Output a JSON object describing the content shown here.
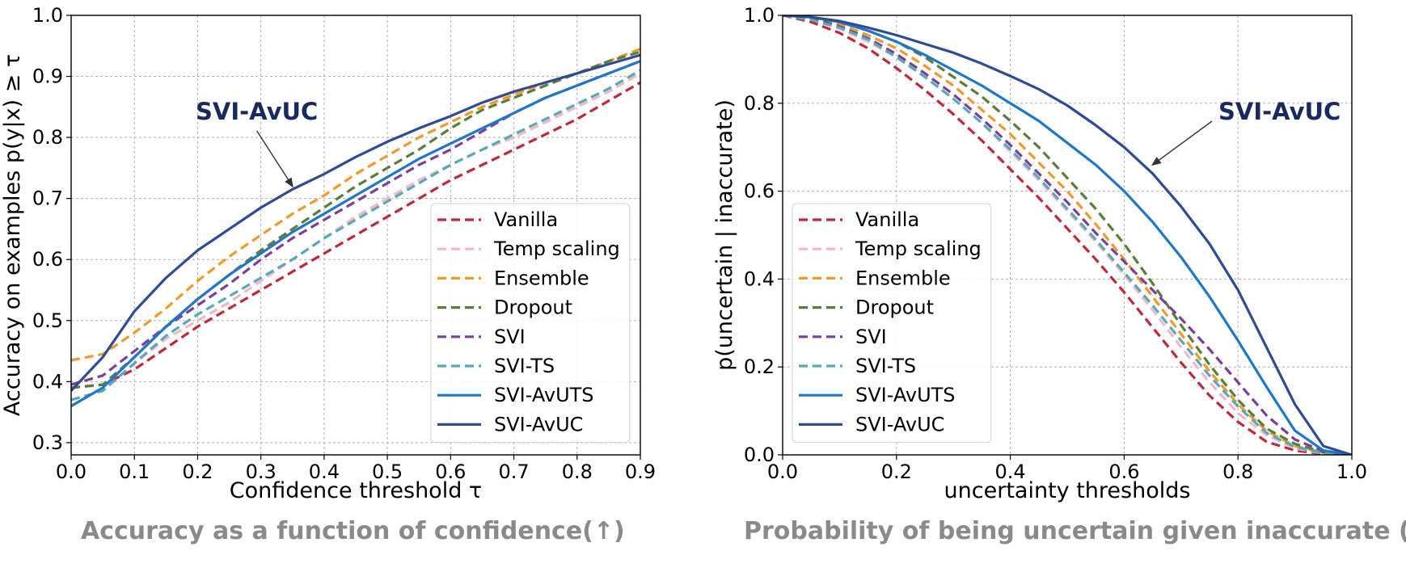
{
  "captions": {
    "left": "Accuracy as a function of confidence(↑)",
    "right": "Probability of being uncertain given inaccurate (↑)"
  },
  "legend_colors": {
    "Vanilla": "#c0283a",
    "Temp scaling": "#f6b6c6",
    "Ensemble": "#f09a2c",
    "Dropout": "#5a7d3c",
    "SVI": "#7b3f9a",
    "SVI-TS": "#55aab8",
    "SVI-AvUTS": "#1f77c8",
    "SVI-AvUC": "#2e4b96"
  },
  "chart_data": [
    {
      "type": "line",
      "title": "",
      "xlabel": "Confidence threshold τ",
      "ylabel": "Accuracy on examples  p(y|x)  ≥ τ",
      "xlim": [
        0.0,
        0.9
      ],
      "ylim": [
        0.28,
        1.0
      ],
      "xticks": [
        "0.0",
        "0.1",
        "0.2",
        "0.3",
        "0.4",
        "0.5",
        "0.6",
        "0.7",
        "0.8",
        "0.9"
      ],
      "yticks": [
        "0.3",
        "0.4",
        "0.5",
        "0.6",
        "0.7",
        "0.8",
        "0.9",
        "1.0"
      ],
      "grid": true,
      "legend": "bottom-right",
      "annotation": {
        "text": "SVI-AvUC",
        "point": [
          0.35,
          0.72
        ]
      },
      "x": [
        0.0,
        0.05,
        0.1,
        0.15,
        0.2,
        0.25,
        0.3,
        0.35,
        0.4,
        0.45,
        0.5,
        0.55,
        0.6,
        0.65,
        0.7,
        0.75,
        0.8,
        0.85,
        0.9
      ],
      "series": [
        {
          "name": "Vanilla",
          "dashed": true,
          "values": [
            0.39,
            0.395,
            0.42,
            0.455,
            0.49,
            0.52,
            0.55,
            0.58,
            0.61,
            0.64,
            0.67,
            0.7,
            0.73,
            0.755,
            0.78,
            0.805,
            0.83,
            0.86,
            0.89
          ]
        },
        {
          "name": "Temp scaling",
          "dashed": true,
          "values": [
            0.37,
            0.385,
            0.43,
            0.47,
            0.5,
            0.53,
            0.565,
            0.6,
            0.635,
            0.67,
            0.7,
            0.73,
            0.755,
            0.78,
            0.8,
            0.825,
            0.85,
            0.875,
            0.905
          ]
        },
        {
          "name": "Ensemble",
          "dashed": true,
          "values": [
            0.435,
            0.445,
            0.48,
            0.52,
            0.565,
            0.605,
            0.64,
            0.675,
            0.705,
            0.74,
            0.77,
            0.8,
            0.825,
            0.85,
            0.87,
            0.89,
            0.905,
            0.925,
            0.945
          ]
        },
        {
          "name": "Dropout",
          "dashed": true,
          "values": [
            0.39,
            0.395,
            0.44,
            0.49,
            0.535,
            0.575,
            0.615,
            0.65,
            0.685,
            0.72,
            0.75,
            0.78,
            0.815,
            0.845,
            0.865,
            0.885,
            0.905,
            0.925,
            0.94
          ]
        },
        {
          "name": "SVI",
          "dashed": true,
          "values": [
            0.395,
            0.41,
            0.45,
            0.49,
            0.525,
            0.56,
            0.6,
            0.635,
            0.665,
            0.695,
            0.725,
            0.755,
            0.78,
            0.81,
            0.84,
            0.865,
            0.885,
            0.905,
            0.925
          ]
        },
        {
          "name": "SVI-TS",
          "dashed": true,
          "values": [
            0.37,
            0.385,
            0.43,
            0.475,
            0.51,
            0.54,
            0.57,
            0.6,
            0.635,
            0.665,
            0.695,
            0.725,
            0.755,
            0.78,
            0.805,
            0.83,
            0.855,
            0.88,
            0.91
          ]
        },
        {
          "name": "SVI-AvUTS",
          "dashed": false,
          "values": [
            0.36,
            0.39,
            0.44,
            0.49,
            0.535,
            0.575,
            0.61,
            0.645,
            0.675,
            0.705,
            0.735,
            0.765,
            0.79,
            0.815,
            0.84,
            0.865,
            0.885,
            0.905,
            0.925
          ]
        },
        {
          "name": "SVI-AvUC",
          "dashed": false,
          "values": [
            0.385,
            0.44,
            0.515,
            0.57,
            0.615,
            0.65,
            0.685,
            0.715,
            0.74,
            0.768,
            0.793,
            0.815,
            0.835,
            0.857,
            0.875,
            0.89,
            0.905,
            0.92,
            0.935
          ]
        }
      ]
    },
    {
      "type": "line",
      "title": "",
      "xlabel": "uncertainty thresholds",
      "ylabel": "p(uncertain | inaccurate)",
      "xlim": [
        0.0,
        1.0
      ],
      "ylim": [
        0.0,
        1.0
      ],
      "xticks": [
        "0.0",
        "0.2",
        "0.4",
        "0.6",
        "0.8",
        "1.0"
      ],
      "yticks": [
        "0.0",
        "0.2",
        "0.4",
        "0.6",
        "0.8",
        "1.0"
      ],
      "grid": true,
      "legend": "bottom-left",
      "annotation": {
        "text": "SVI-AvUC",
        "point": [
          0.65,
          0.66
        ]
      },
      "x": [
        0.0,
        0.05,
        0.1,
        0.15,
        0.2,
        0.25,
        0.3,
        0.35,
        0.4,
        0.45,
        0.5,
        0.55,
        0.6,
        0.65,
        0.7,
        0.75,
        0.8,
        0.85,
        0.9,
        0.95,
        1.0
      ],
      "series": [
        {
          "name": "Vanilla",
          "dashed": true,
          "values": [
            1.0,
            0.985,
            0.96,
            0.925,
            0.88,
            0.83,
            0.775,
            0.715,
            0.65,
            0.585,
            0.515,
            0.445,
            0.37,
            0.29,
            0.21,
            0.135,
            0.075,
            0.03,
            0.01,
            0.002,
            0.0
          ]
        },
        {
          "name": "Temp scaling",
          "dashed": true,
          "values": [
            1.0,
            0.99,
            0.97,
            0.94,
            0.905,
            0.86,
            0.81,
            0.755,
            0.69,
            0.625,
            0.555,
            0.485,
            0.41,
            0.33,
            0.245,
            0.165,
            0.095,
            0.045,
            0.015,
            0.003,
            0.0
          ]
        },
        {
          "name": "Ensemble",
          "dashed": true,
          "values": [
            1.0,
            0.995,
            0.98,
            0.955,
            0.925,
            0.885,
            0.84,
            0.785,
            0.73,
            0.665,
            0.6,
            0.525,
            0.445,
            0.36,
            0.275,
            0.19,
            0.115,
            0.055,
            0.02,
            0.005,
            0.0
          ]
        },
        {
          "name": "Dropout",
          "dashed": true,
          "values": [
            1.0,
            0.995,
            0.985,
            0.965,
            0.94,
            0.905,
            0.86,
            0.815,
            0.76,
            0.7,
            0.63,
            0.56,
            0.48,
            0.39,
            0.295,
            0.205,
            0.125,
            0.06,
            0.025,
            0.006,
            0.0
          ]
        },
        {
          "name": "SVI",
          "dashed": true,
          "values": [
            1.0,
            0.993,
            0.975,
            0.948,
            0.912,
            0.868,
            0.82,
            0.765,
            0.705,
            0.64,
            0.575,
            0.505,
            0.44,
            0.375,
            0.31,
            0.24,
            0.165,
            0.09,
            0.035,
            0.008,
            0.0
          ]
        },
        {
          "name": "SVI-TS",
          "dashed": true,
          "values": [
            1.0,
            0.99,
            0.972,
            0.945,
            0.905,
            0.86,
            0.81,
            0.755,
            0.695,
            0.63,
            0.56,
            0.49,
            0.415,
            0.34,
            0.26,
            0.18,
            0.11,
            0.05,
            0.018,
            0.004,
            0.0
          ]
        },
        {
          "name": "SVI-AvUTS",
          "dashed": false,
          "values": [
            1.0,
            0.996,
            0.985,
            0.965,
            0.94,
            0.91,
            0.875,
            0.84,
            0.8,
            0.76,
            0.71,
            0.66,
            0.6,
            0.53,
            0.45,
            0.36,
            0.26,
            0.155,
            0.055,
            0.01,
            0.0
          ]
        },
        {
          "name": "SVI-AvUC",
          "dashed": false,
          "values": [
            1.0,
            0.996,
            0.987,
            0.972,
            0.955,
            0.935,
            0.915,
            0.89,
            0.862,
            0.832,
            0.795,
            0.75,
            0.7,
            0.64,
            0.565,
            0.48,
            0.375,
            0.245,
            0.115,
            0.02,
            0.0
          ]
        }
      ]
    }
  ]
}
